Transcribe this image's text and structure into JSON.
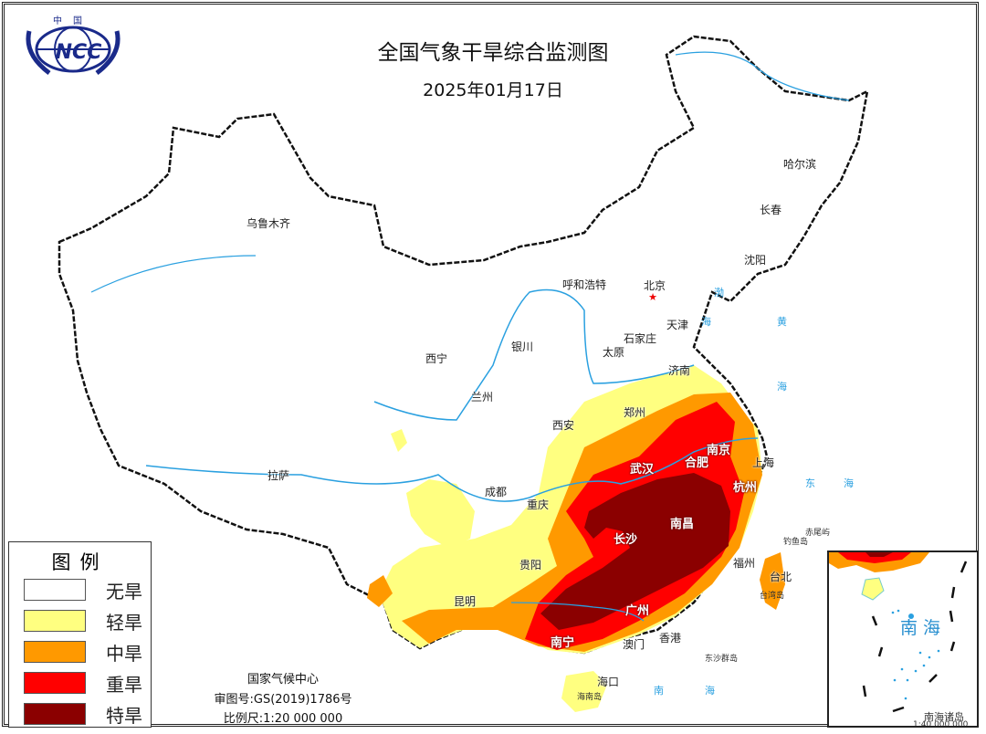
{
  "header": {
    "title": "全国气象干旱综合监测图",
    "date": "2025年01月17日",
    "logo_text": "NCC",
    "logo_country": "中国"
  },
  "legend": {
    "title": "图例",
    "items": [
      {
        "label": "无旱",
        "color": "#ffffff"
      },
      {
        "label": "轻旱",
        "color": "#ffff80"
      },
      {
        "label": "中旱",
        "color": "#ff9900"
      },
      {
        "label": "重旱",
        "color": "#ff0000"
      },
      {
        "label": "特旱",
        "color": "#8b0000"
      }
    ]
  },
  "credits": {
    "agency": "国家气候中心",
    "approval": "审图号:GS(2019)1786号",
    "scale": "比例尺:1:20 000 000"
  },
  "cities": [
    "乌鲁木齐",
    "哈尔滨",
    "长春",
    "沈阳",
    "呼和浩特",
    "北京",
    "天津",
    "石家庄",
    "太原",
    "济南",
    "西宁",
    "银川",
    "兰州",
    "郑州",
    "西安",
    "南京",
    "合肥",
    "上海",
    "武汉",
    "杭州",
    "拉萨",
    "成都",
    "重庆",
    "长沙",
    "南昌",
    "贵阳",
    "福州",
    "台北",
    "昆明",
    "广州",
    "南宁",
    "澳门",
    "香港",
    "海口"
  ],
  "islands": [
    "台湾岛",
    "海南岛",
    "东沙群岛",
    "钓鱼岛",
    "赤尾屿"
  ],
  "seas": {
    "bohai": [
      "渤",
      "海"
    ],
    "huanghai": [
      "黄",
      "海"
    ],
    "donghai": [
      "东",
      "海"
    ],
    "nanhai": [
      "南",
      "海"
    ]
  },
  "inset": {
    "sea": "南海",
    "name": "南海诸岛",
    "scale": "1:40 000 000"
  }
}
